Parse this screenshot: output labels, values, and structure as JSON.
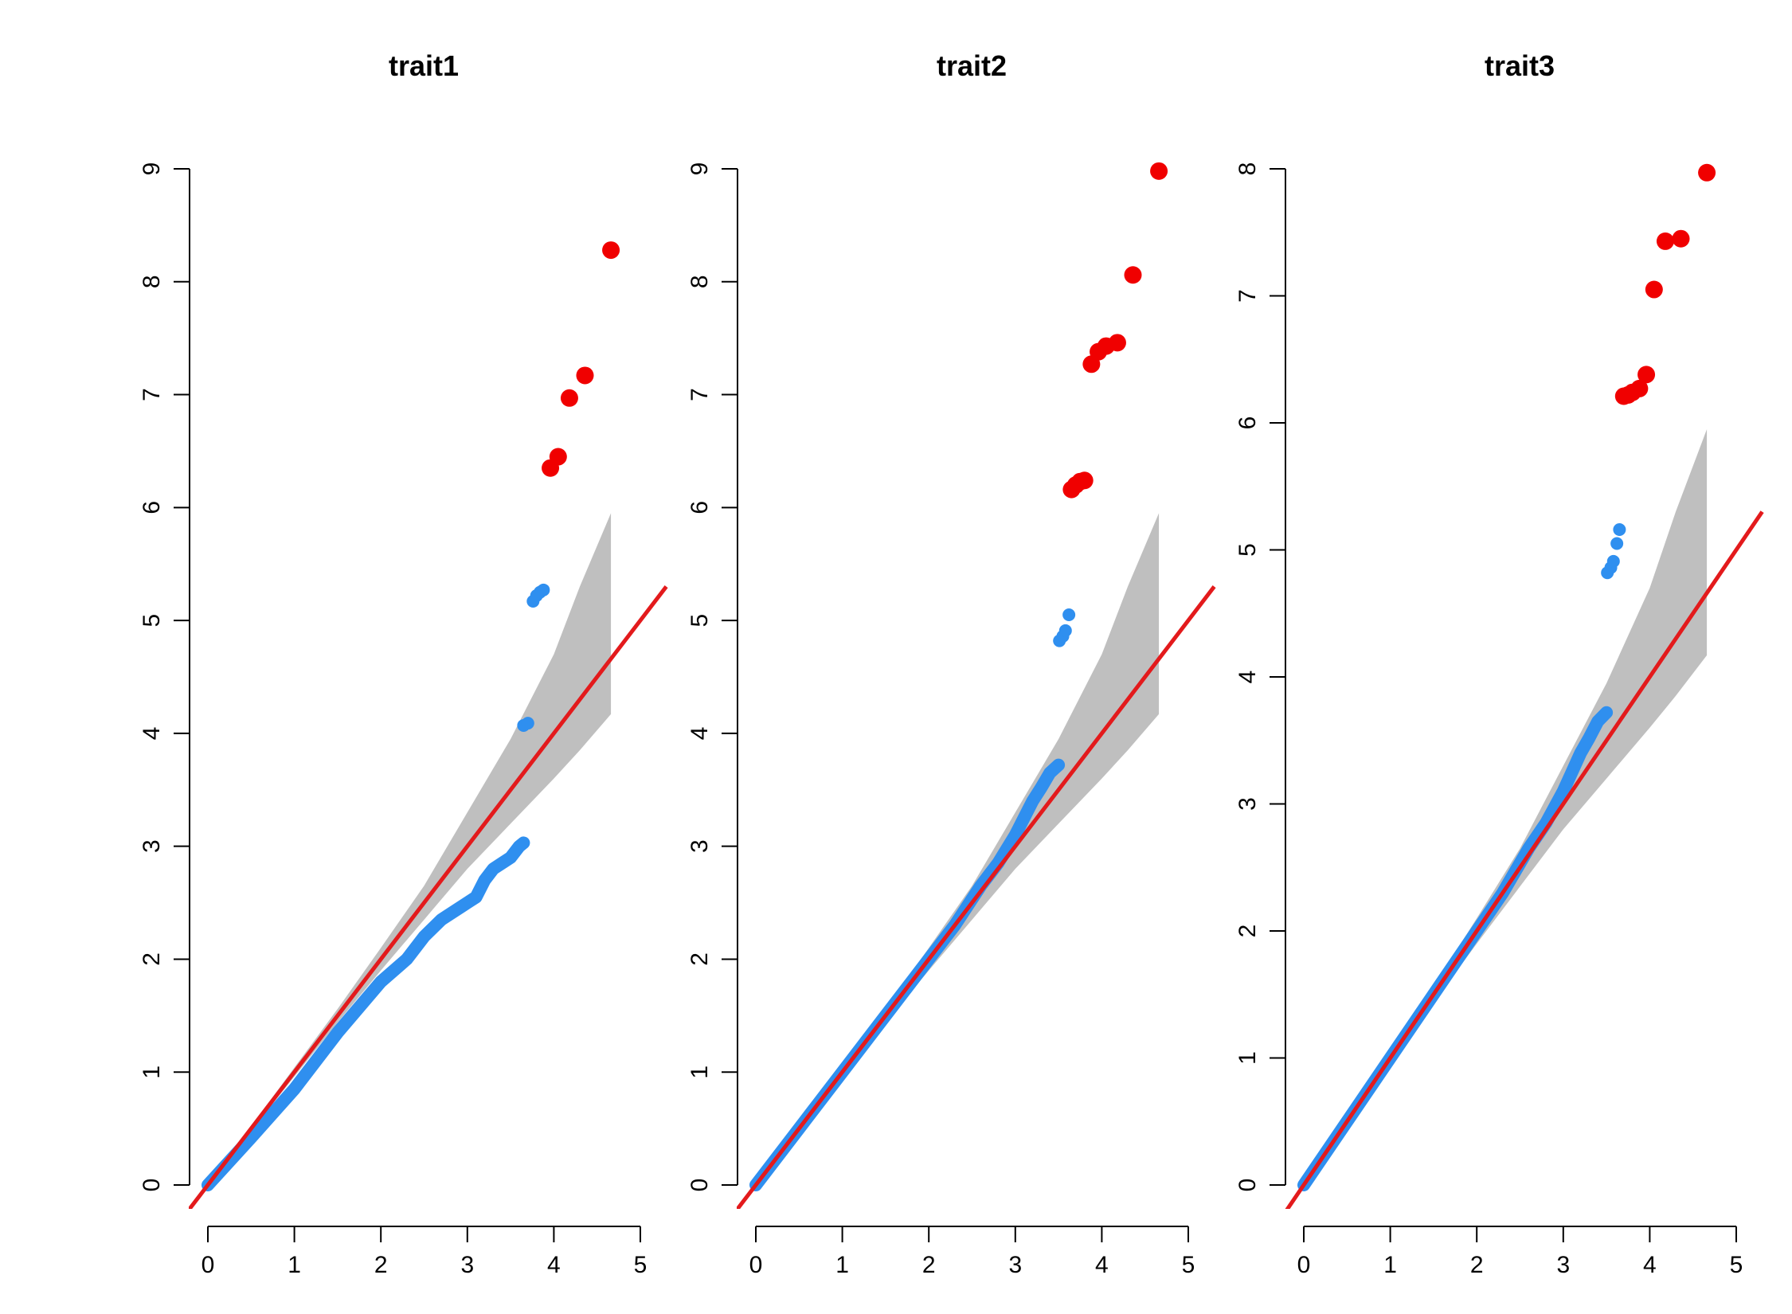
{
  "figure": {
    "colors": {
      "significant": "#f00000",
      "normal": "#2f8fef",
      "reference_line": "#e31a1c",
      "ci_band": "#bfbfbf"
    }
  },
  "chart_data": [
    {
      "type": "scatter",
      "title": "trait1",
      "xlabel": "",
      "ylabel": "",
      "xlim": [
        0,
        5
      ],
      "ylim": [
        0,
        9
      ],
      "x_ticks": [
        "0",
        "1",
        "2",
        "3",
        "4",
        "5"
      ],
      "y_ticks": [
        "0",
        "1",
        "2",
        "3",
        "4",
        "5",
        "6",
        "7",
        "8",
        "9"
      ],
      "reference_line": {
        "intercept": 0,
        "slope": 1
      },
      "ci_band": {
        "x": [
          0,
          0.5,
          1,
          1.5,
          2,
          2.5,
          3,
          3.5,
          4,
          4.3,
          4.66
        ],
        "lower": [
          0,
          0.48,
          0.96,
          1.44,
          1.9,
          2.35,
          2.8,
          3.2,
          3.6,
          3.85,
          4.17
        ],
        "upper": [
          0,
          0.52,
          1.04,
          1.56,
          2.1,
          2.65,
          3.3,
          3.95,
          4.7,
          5.3,
          5.95
        ]
      },
      "curve": {
        "name": "observed",
        "x": [
          0,
          0.5,
          1,
          1.5,
          2,
          2.3,
          2.5,
          2.7,
          3,
          3.1,
          3.2,
          3.3,
          3.4,
          3.5,
          3.6,
          3.65
        ],
        "y": [
          0,
          0.42,
          0.85,
          1.35,
          1.8,
          2.0,
          2.2,
          2.35,
          2.5,
          2.55,
          2.7,
          2.8,
          2.85,
          2.9,
          3.0,
          3.03
        ]
      },
      "points_normal": [
        {
          "x": 3.65,
          "y": 4.07
        },
        {
          "x": 3.7,
          "y": 4.09
        },
        {
          "x": 3.76,
          "y": 5.17
        },
        {
          "x": 3.8,
          "y": 5.22
        },
        {
          "x": 3.84,
          "y": 5.25
        },
        {
          "x": 3.88,
          "y": 5.27
        }
      ],
      "points_significant": [
        {
          "x": 3.96,
          "y": 6.35
        },
        {
          "x": 4.05,
          "y": 6.45
        },
        {
          "x": 4.18,
          "y": 6.97
        },
        {
          "x": 4.36,
          "y": 7.17
        },
        {
          "x": 4.66,
          "y": 8.28
        }
      ]
    },
    {
      "type": "scatter",
      "title": "trait2",
      "xlabel": "",
      "ylabel": "",
      "xlim": [
        0,
        5
      ],
      "ylim": [
        0,
        9
      ],
      "x_ticks": [
        "0",
        "1",
        "2",
        "3",
        "4",
        "5"
      ],
      "y_ticks": [
        "0",
        "1",
        "2",
        "3",
        "4",
        "5",
        "6",
        "7",
        "8",
        "9"
      ],
      "reference_line": {
        "intercept": 0,
        "slope": 1
      },
      "ci_band": {
        "x": [
          0,
          0.5,
          1,
          1.5,
          2,
          2.5,
          3,
          3.5,
          4,
          4.3,
          4.66
        ],
        "lower": [
          0,
          0.48,
          0.96,
          1.44,
          1.9,
          2.35,
          2.8,
          3.2,
          3.6,
          3.85,
          4.17
        ],
        "upper": [
          0,
          0.52,
          1.04,
          1.56,
          2.1,
          2.65,
          3.3,
          3.95,
          4.7,
          5.3,
          5.95
        ]
      },
      "curve": {
        "name": "observed",
        "x": [
          0,
          0.5,
          1,
          1.5,
          2,
          2.3,
          2.6,
          2.8,
          3,
          3.1,
          3.2,
          3.3,
          3.4,
          3.5
        ],
        "y": [
          0,
          0.5,
          1.0,
          1.5,
          2.0,
          2.3,
          2.65,
          2.85,
          3.1,
          3.25,
          3.4,
          3.52,
          3.65,
          3.72
        ]
      },
      "points_normal": [
        {
          "x": 3.51,
          "y": 4.82
        },
        {
          "x": 3.55,
          "y": 4.86
        },
        {
          "x": 3.58,
          "y": 4.91
        },
        {
          "x": 3.62,
          "y": 5.05
        }
      ],
      "points_significant": [
        {
          "x": 3.65,
          "y": 6.16
        },
        {
          "x": 3.7,
          "y": 6.2
        },
        {
          "x": 3.75,
          "y": 6.23
        },
        {
          "x": 3.8,
          "y": 6.24
        },
        {
          "x": 3.88,
          "y": 7.27
        },
        {
          "x": 3.96,
          "y": 7.38
        },
        {
          "x": 4.05,
          "y": 7.43
        },
        {
          "x": 4.18,
          "y": 7.46
        },
        {
          "x": 4.36,
          "y": 8.06
        },
        {
          "x": 4.66,
          "y": 8.98
        }
      ]
    },
    {
      "type": "scatter",
      "title": "trait3",
      "xlabel": "",
      "ylabel": "",
      "xlim": [
        0,
        5
      ],
      "ylim": [
        0,
        8
      ],
      "x_ticks": [
        "0",
        "1",
        "2",
        "3",
        "4",
        "5"
      ],
      "y_ticks": [
        "0",
        "1",
        "2",
        "3",
        "4",
        "5",
        "6",
        "7",
        "8"
      ],
      "reference_line": {
        "intercept": 0,
        "slope": 1
      },
      "ci_band": {
        "x": [
          0,
          0.5,
          1,
          1.5,
          2,
          2.5,
          3,
          3.5,
          4,
          4.3,
          4.66
        ],
        "lower": [
          0,
          0.48,
          0.96,
          1.44,
          1.9,
          2.35,
          2.8,
          3.2,
          3.6,
          3.85,
          4.17
        ],
        "upper": [
          0,
          0.52,
          1.04,
          1.56,
          2.1,
          2.65,
          3.3,
          3.95,
          4.7,
          5.3,
          5.95
        ]
      },
      "curve": {
        "name": "observed",
        "x": [
          0,
          0.5,
          1,
          1.5,
          2,
          2.3,
          2.6,
          2.8,
          3,
          3.1,
          3.2,
          3.3,
          3.4,
          3.5
        ],
        "y": [
          0,
          0.5,
          1.0,
          1.5,
          2.0,
          2.3,
          2.65,
          2.85,
          3.1,
          3.25,
          3.4,
          3.52,
          3.65,
          3.72
        ]
      },
      "points_normal": [
        {
          "x": 3.51,
          "y": 4.82
        },
        {
          "x": 3.55,
          "y": 4.86
        },
        {
          "x": 3.58,
          "y": 4.91
        },
        {
          "x": 3.62,
          "y": 5.05
        },
        {
          "x": 3.65,
          "y": 5.16
        }
      ],
      "points_significant": [
        {
          "x": 3.7,
          "y": 6.21
        },
        {
          "x": 3.75,
          "y": 6.22
        },
        {
          "x": 3.8,
          "y": 6.24
        },
        {
          "x": 3.88,
          "y": 6.27
        },
        {
          "x": 3.96,
          "y": 6.38
        },
        {
          "x": 4.05,
          "y": 7.05
        },
        {
          "x": 4.18,
          "y": 7.43
        },
        {
          "x": 4.36,
          "y": 7.45
        },
        {
          "x": 4.66,
          "y": 7.97
        }
      ]
    }
  ]
}
